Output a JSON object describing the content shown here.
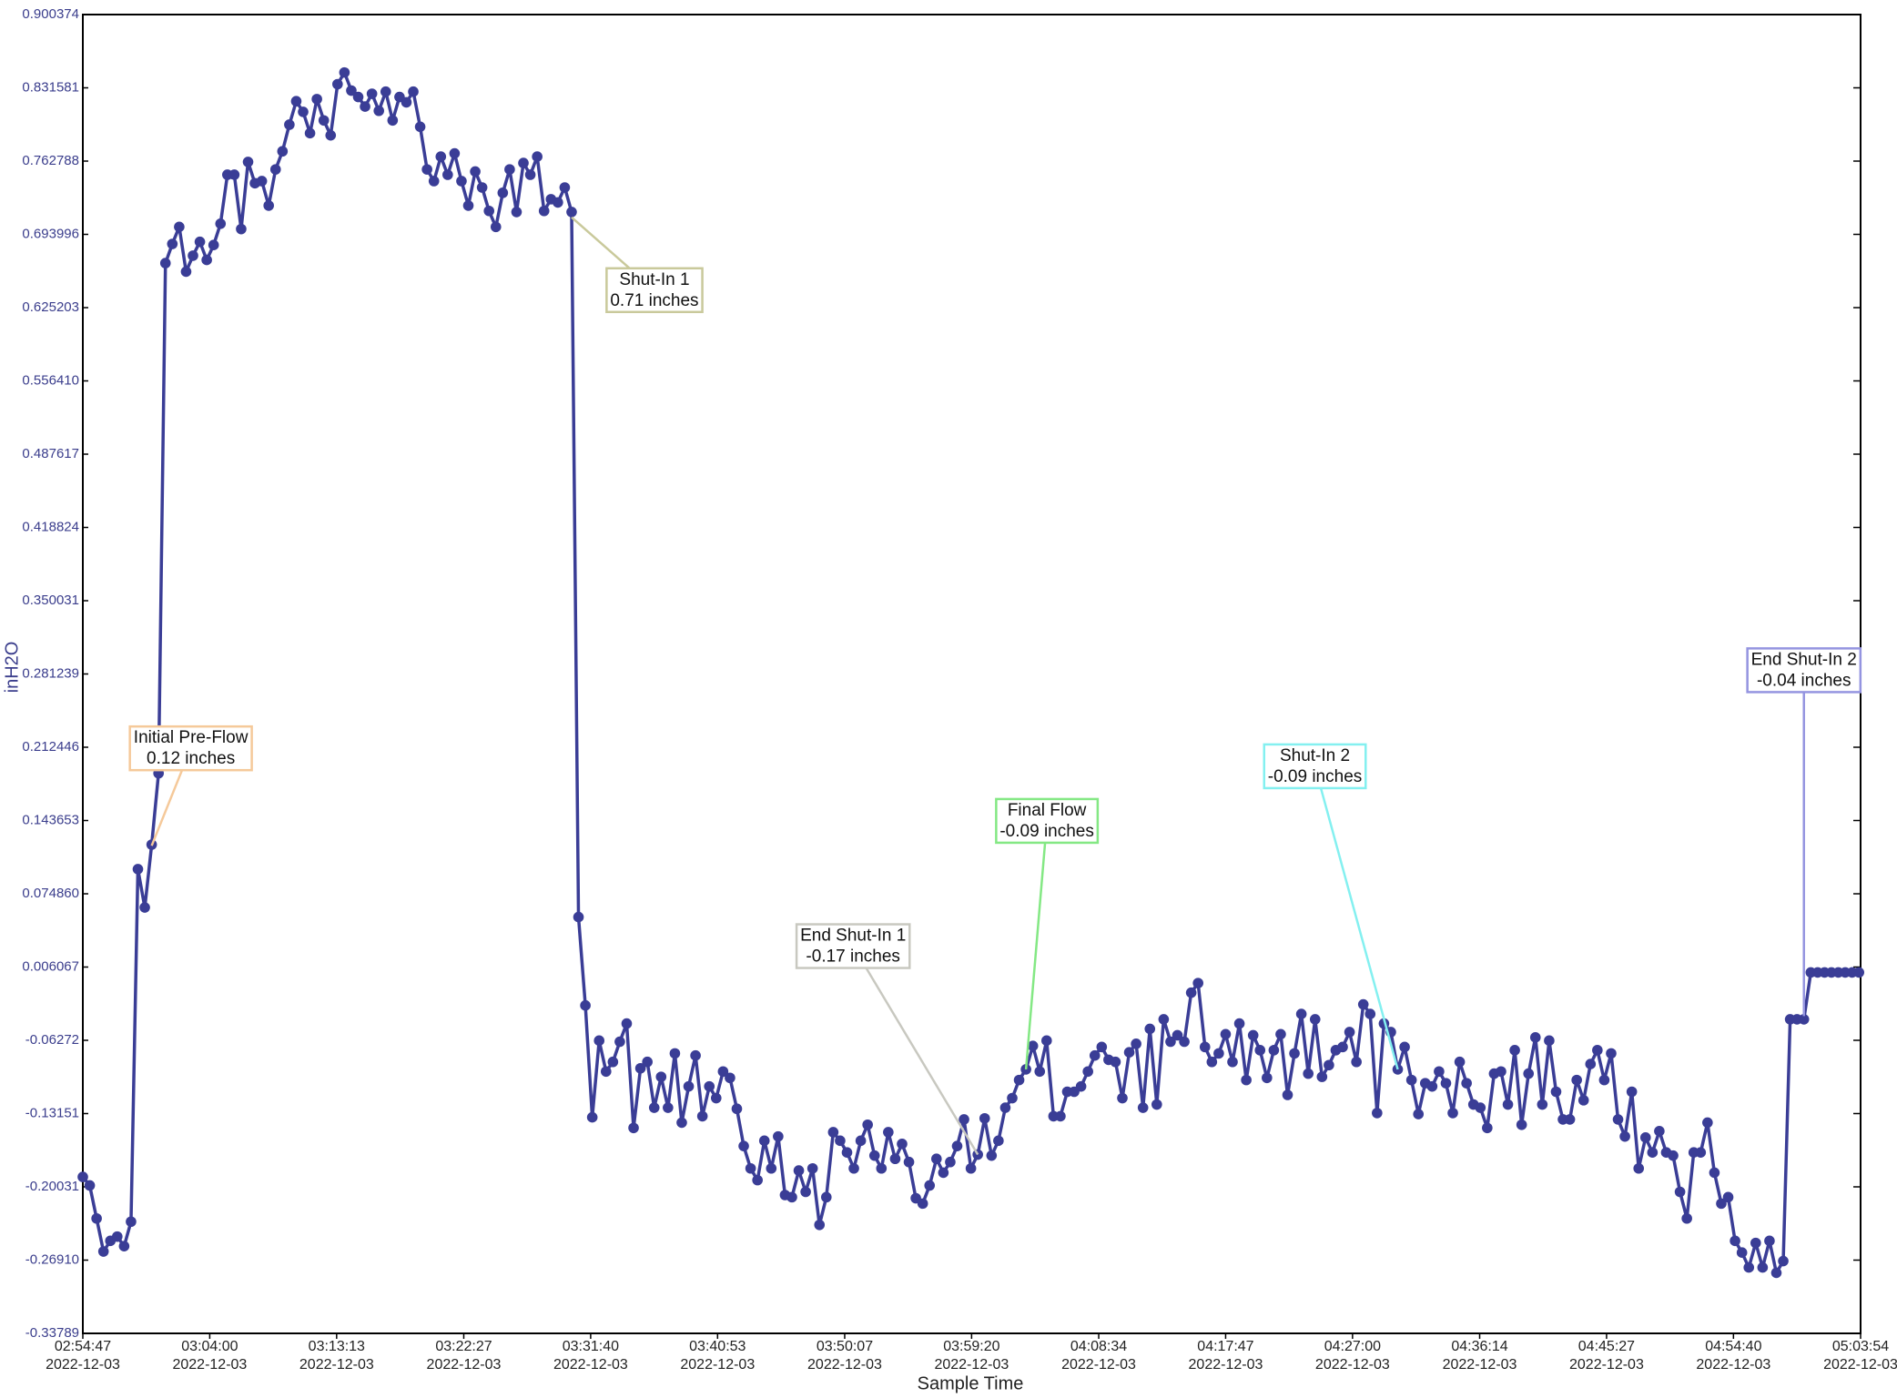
{
  "chart_data": {
    "type": "line",
    "x_label": "Sample Time",
    "y_label": "inH2O",
    "color": "#3a3d96",
    "xlim": [
      "2022-12-03 02:54:47",
      "2022-12-03 05:03:54"
    ],
    "ylim": [
      -0.33789,
      0.900374
    ],
    "yticks": [
      0.900374,
      0.831581,
      0.762788,
      0.693996,
      0.625203,
      {
        "value": 0.55641,
        "label": "0.556410"
      },
      0.487617,
      0.418824,
      0.350031,
      0.281239,
      0.212446,
      0.143653,
      {
        "value": 0.07486,
        "label": "0.074860"
      },
      0.006067,
      -0.06272,
      -0.13151,
      -0.20031,
      {
        "value": -0.2691,
        "label": "-0.26910"
      },
      -0.33789
    ],
    "xticks": [
      {
        "value": "2022-12-03 02:54:47",
        "label": [
          "02:54:47",
          "2022-12-03"
        ]
      },
      {
        "value": "2022-12-03 03:04:00",
        "label": [
          "03:04:00",
          "2022-12-03"
        ]
      },
      {
        "value": "2022-12-03 03:13:13",
        "label": [
          "03:13:13",
          "2022-12-03"
        ]
      },
      {
        "value": "2022-12-03 03:22:27",
        "label": [
          "03:22:27",
          "2022-12-03"
        ]
      },
      {
        "value": "2022-12-03 03:31:40",
        "label": [
          "03:31:40",
          "2022-12-03"
        ]
      },
      {
        "value": "2022-12-03 03:40:53",
        "label": [
          "03:40:53",
          "2022-12-03"
        ]
      },
      {
        "value": "2022-12-03 03:50:07",
        "label": [
          "03:50:07",
          "2022-12-03"
        ]
      },
      {
        "value": "2022-12-03 03:59:20",
        "label": [
          "03:59:20",
          "2022-12-03"
        ]
      },
      {
        "value": "2022-12-03 04:08:34",
        "label": [
          "04:08:34",
          "2022-12-03"
        ]
      },
      {
        "value": "2022-12-03 04:17:47",
        "label": [
          "04:17:47",
          "2022-12-03"
        ]
      },
      {
        "value": "2022-12-03 04:27:00",
        "label": [
          "04:27:00",
          "2022-12-03"
        ]
      },
      {
        "value": "2022-12-03 04:36:14",
        "label": [
          "04:36:14",
          "2022-12-03"
        ]
      },
      {
        "value": "2022-12-03 04:45:27",
        "label": [
          "04:45:27",
          "2022-12-03"
        ]
      },
      {
        "value": "2022-12-03 04:54:40",
        "label": [
          "04:54:40",
          "2022-12-03"
        ]
      },
      {
        "value": "2022-12-03 05:03:54",
        "label": [
          "05:03:54",
          "2022-12-03"
        ]
      }
    ],
    "annotations": [
      {
        "title": "Initial Pre-Flow",
        "label": "0.12 inches",
        "x": "2022-12-03 02:59:47",
        "y": 0.12,
        "color": "#f5c99a"
      },
      {
        "title": "Shut-In 1",
        "label": "0.71 inches",
        "x": "2022-12-03 03:30:17",
        "y": 0.71,
        "color": "#c9c99b"
      },
      {
        "title": "End Shut-In 1",
        "label": "-0.17 inches",
        "x": "2022-12-03 03:59:47",
        "y": -0.17,
        "color": "#c8c8c0"
      },
      {
        "title": "Final Flow",
        "label": "-0.09 inches",
        "x": "2022-12-03 04:03:17",
        "y": -0.09,
        "color": "#84e884"
      },
      {
        "title": "Shut-In 2",
        "label": "-0.09 inches",
        "x": "2022-12-03 04:30:17",
        "y": -0.09,
        "color": "#84f0f0"
      },
      {
        "title": "End Shut-In 2",
        "label": "-0.04 inches",
        "x": "2022-12-03 04:59:47",
        "y": -0.04,
        "color": "#9494e0"
      }
    ],
    "x": [
      "2022-12-03 02:54:47",
      "2022-12-03 02:55:17",
      "2022-12-03 02:55:47",
      "2022-12-03 02:56:17",
      "2022-12-03 02:56:47",
      "2022-12-03 02:57:17",
      "2022-12-03 02:57:47",
      "2022-12-03 02:58:17",
      "2022-12-03 02:58:47",
      "2022-12-03 02:59:17",
      "2022-12-03 02:59:47",
      "2022-12-03 03:00:17",
      "2022-12-03 03:00:47",
      "2022-12-03 03:01:17",
      "2022-12-03 03:01:47",
      "2022-12-03 03:02:17",
      "2022-12-03 03:02:47",
      "2022-12-03 03:03:17",
      "2022-12-03 03:03:47",
      "2022-12-03 03:04:17",
      "2022-12-03 03:04:47",
      "2022-12-03 03:05:17",
      "2022-12-03 03:05:47",
      "2022-12-03 03:06:17",
      "2022-12-03 03:06:47",
      "2022-12-03 03:07:17",
      "2022-12-03 03:07:47",
      "2022-12-03 03:08:17",
      "2022-12-03 03:08:47",
      "2022-12-03 03:09:17",
      "2022-12-03 03:09:47",
      "2022-12-03 03:10:17",
      "2022-12-03 03:10:47",
      "2022-12-03 03:11:17",
      "2022-12-03 03:11:47",
      "2022-12-03 03:12:17",
      "2022-12-03 03:12:47",
      "2022-12-03 03:13:17",
      "2022-12-03 03:13:47",
      "2022-12-03 03:14:17",
      "2022-12-03 03:14:47",
      "2022-12-03 03:15:17",
      "2022-12-03 03:15:47",
      "2022-12-03 03:16:17",
      "2022-12-03 03:16:47",
      "2022-12-03 03:17:17",
      "2022-12-03 03:17:47",
      "2022-12-03 03:18:17",
      "2022-12-03 03:18:47",
      "2022-12-03 03:19:17",
      "2022-12-03 03:19:47",
      "2022-12-03 03:20:17",
      "2022-12-03 03:20:47",
      "2022-12-03 03:21:17",
      "2022-12-03 03:21:47",
      "2022-12-03 03:22:17",
      "2022-12-03 03:22:47",
      "2022-12-03 03:23:17",
      "2022-12-03 03:23:47",
      "2022-12-03 03:24:17",
      "2022-12-03 03:24:47",
      "2022-12-03 03:25:17",
      "2022-12-03 03:25:47",
      "2022-12-03 03:26:17",
      "2022-12-03 03:26:47",
      "2022-12-03 03:27:17",
      "2022-12-03 03:27:47",
      "2022-12-03 03:28:17",
      "2022-12-03 03:28:47",
      "2022-12-03 03:29:17",
      "2022-12-03 03:29:47",
      "2022-12-03 03:30:17",
      "2022-12-03 03:30:47",
      "2022-12-03 03:31:17",
      "2022-12-03 03:31:47",
      "2022-12-03 03:32:17",
      "2022-12-03 03:32:47",
      "2022-12-03 03:33:17",
      "2022-12-03 03:33:47",
      "2022-12-03 03:34:17",
      "2022-12-03 03:34:47",
      "2022-12-03 03:35:17",
      "2022-12-03 03:35:47",
      "2022-12-03 03:36:17",
      "2022-12-03 03:36:47",
      "2022-12-03 03:37:17",
      "2022-12-03 03:37:47",
      "2022-12-03 03:38:17",
      "2022-12-03 03:38:47",
      "2022-12-03 03:39:17",
      "2022-12-03 03:39:47",
      "2022-12-03 03:40:17",
      "2022-12-03 03:40:47",
      "2022-12-03 03:41:17",
      "2022-12-03 03:41:47",
      "2022-12-03 03:42:17",
      "2022-12-03 03:42:47",
      "2022-12-03 03:43:17",
      "2022-12-03 03:43:47",
      "2022-12-03 03:44:17",
      "2022-12-03 03:44:47",
      "2022-12-03 03:45:17",
      "2022-12-03 03:45:47",
      "2022-12-03 03:46:17",
      "2022-12-03 03:46:47",
      "2022-12-03 03:47:17",
      "2022-12-03 03:47:47",
      "2022-12-03 03:48:17",
      "2022-12-03 03:48:47",
      "2022-12-03 03:49:17",
      "2022-12-03 03:49:47",
      "2022-12-03 03:50:17",
      "2022-12-03 03:50:47",
      "2022-12-03 03:51:17",
      "2022-12-03 03:51:47",
      "2022-12-03 03:52:17",
      "2022-12-03 03:52:47",
      "2022-12-03 03:53:17",
      "2022-12-03 03:53:47",
      "2022-12-03 03:54:17",
      "2022-12-03 03:54:47",
      "2022-12-03 03:55:17",
      "2022-12-03 03:55:47",
      "2022-12-03 03:56:17",
      "2022-12-03 03:56:47",
      "2022-12-03 03:57:17",
      "2022-12-03 03:57:47",
      "2022-12-03 03:58:17",
      "2022-12-03 03:58:47",
      "2022-12-03 03:59:17",
      "2022-12-03 03:59:47",
      "2022-12-03 04:00:17",
      "2022-12-03 04:00:47",
      "2022-12-03 04:01:17",
      "2022-12-03 04:01:47",
      "2022-12-03 04:02:17",
      "2022-12-03 04:02:47",
      "2022-12-03 04:03:17",
      "2022-12-03 04:03:47",
      "2022-12-03 04:04:17",
      "2022-12-03 04:04:47",
      "2022-12-03 04:05:17",
      "2022-12-03 04:05:47",
      "2022-12-03 04:06:17",
      "2022-12-03 04:06:47",
      "2022-12-03 04:07:17",
      "2022-12-03 04:07:47",
      "2022-12-03 04:08:17",
      "2022-12-03 04:08:47",
      "2022-12-03 04:09:17",
      "2022-12-03 04:09:47",
      "2022-12-03 04:10:17",
      "2022-12-03 04:10:47",
      "2022-12-03 04:11:17",
      "2022-12-03 04:11:47",
      "2022-12-03 04:12:17",
      "2022-12-03 04:12:47",
      "2022-12-03 04:13:17",
      "2022-12-03 04:13:47",
      "2022-12-03 04:14:17",
      "2022-12-03 04:14:47",
      "2022-12-03 04:15:17",
      "2022-12-03 04:15:47",
      "2022-12-03 04:16:17",
      "2022-12-03 04:16:47",
      "2022-12-03 04:17:17",
      "2022-12-03 04:17:47",
      "2022-12-03 04:18:17",
      "2022-12-03 04:18:47",
      "2022-12-03 04:19:17",
      "2022-12-03 04:19:47",
      "2022-12-03 04:20:17",
      "2022-12-03 04:20:47",
      "2022-12-03 04:21:17",
      "2022-12-03 04:21:47",
      "2022-12-03 04:22:17",
      "2022-12-03 04:22:47",
      "2022-12-03 04:23:17",
      "2022-12-03 04:23:47",
      "2022-12-03 04:24:17",
      "2022-12-03 04:24:47",
      "2022-12-03 04:25:17",
      "2022-12-03 04:25:47",
      "2022-12-03 04:26:17",
      "2022-12-03 04:26:47",
      "2022-12-03 04:27:17",
      "2022-12-03 04:27:47",
      "2022-12-03 04:28:17",
      "2022-12-03 04:28:47",
      "2022-12-03 04:29:17",
      "2022-12-03 04:29:47",
      "2022-12-03 04:30:17",
      "2022-12-03 04:30:47",
      "2022-12-03 04:31:17",
      "2022-12-03 04:31:47",
      "2022-12-03 04:32:17",
      "2022-12-03 04:32:47",
      "2022-12-03 04:33:17",
      "2022-12-03 04:33:47",
      "2022-12-03 04:34:17",
      "2022-12-03 04:34:47",
      "2022-12-03 04:35:17",
      "2022-12-03 04:35:47",
      "2022-12-03 04:36:17",
      "2022-12-03 04:36:47",
      "2022-12-03 04:37:17",
      "2022-12-03 04:37:47",
      "2022-12-03 04:38:17",
      "2022-12-03 04:38:47",
      "2022-12-03 04:39:17",
      "2022-12-03 04:39:47",
      "2022-12-03 04:40:17",
      "2022-12-03 04:40:47",
      "2022-12-03 04:41:17",
      "2022-12-03 04:41:47",
      "2022-12-03 04:42:17",
      "2022-12-03 04:42:47",
      "2022-12-03 04:43:17",
      "2022-12-03 04:43:47",
      "2022-12-03 04:44:17",
      "2022-12-03 04:44:47",
      "2022-12-03 04:45:17",
      "2022-12-03 04:45:47",
      "2022-12-03 04:46:17",
      "2022-12-03 04:46:47",
      "2022-12-03 04:47:17",
      "2022-12-03 04:47:47",
      "2022-12-03 04:48:17",
      "2022-12-03 04:48:47",
      "2022-12-03 04:49:17",
      "2022-12-03 04:49:47",
      "2022-12-03 04:50:17",
      "2022-12-03 04:50:47",
      "2022-12-03 04:51:17",
      "2022-12-03 04:51:47",
      "2022-12-03 04:52:17",
      "2022-12-03 04:52:47",
      "2022-12-03 04:53:17",
      "2022-12-03 04:53:47",
      "2022-12-03 04:54:17",
      "2022-12-03 04:54:47",
      "2022-12-03 04:55:17",
      "2022-12-03 04:55:47",
      "2022-12-03 04:56:17",
      "2022-12-03 04:56:47",
      "2022-12-03 04:57:17",
      "2022-12-03 04:57:47",
      "2022-12-03 04:58:17",
      "2022-12-03 04:58:47",
      "2022-12-03 04:59:17",
      "2022-12-03 04:59:47",
      "2022-12-03 05:00:17",
      "2022-12-03 05:00:47",
      "2022-12-03 05:01:17",
      "2022-12-03 05:01:47",
      "2022-12-03 05:02:17",
      "2022-12-03 05:02:47",
      "2022-12-03 05:03:17",
      "2022-12-03 05:03:47"
    ],
    "values": [
      -0.191,
      -0.199,
      -0.23,
      -0.261,
      -0.251,
      -0.247,
      -0.256,
      -0.233,
      0.098,
      0.062,
      0.121,
      0.188,
      0.667,
      0.685,
      0.701,
      0.659,
      0.674,
      0.687,
      0.67,
      0.684,
      0.704,
      0.75,
      0.75,
      0.699,
      0.762,
      0.742,
      0.744,
      0.721,
      0.755,
      0.772,
      0.797,
      0.819,
      0.809,
      0.789,
      0.821,
      0.801,
      0.787,
      0.835,
      0.846,
      0.829,
      0.823,
      0.814,
      0.826,
      0.81,
      0.828,
      0.801,
      0.823,
      0.818,
      0.828,
      0.795,
      0.755,
      0.744,
      0.767,
      0.75,
      0.77,
      0.744,
      0.721,
      0.753,
      0.738,
      0.716,
      0.701,
      0.733,
      0.755,
      0.715,
      0.761,
      0.75,
      0.767,
      0.716,
      0.727,
      0.724,
      0.738,
      0.715,
      0.053,
      -0.03,
      -0.135,
      -0.063,
      -0.092,
      -0.083,
      -0.064,
      -0.047,
      -0.145,
      -0.089,
      -0.083,
      -0.126,
      -0.097,
      -0.126,
      -0.075,
      -0.14,
      -0.106,
      -0.077,
      -0.134,
      -0.106,
      -0.117,
      -0.092,
      -0.098,
      -0.127,
      -0.162,
      -0.183,
      -0.194,
      -0.157,
      -0.183,
      -0.153,
      -0.208,
      -0.21,
      -0.185,
      -0.205,
      -0.183,
      -0.236,
      -0.21,
      -0.149,
      -0.157,
      -0.168,
      -0.183,
      -0.157,
      -0.142,
      -0.171,
      -0.183,
      -0.149,
      -0.174,
      -0.16,
      -0.177,
      -0.211,
      -0.216,
      -0.199,
      -0.174,
      -0.187,
      -0.177,
      -0.162,
      -0.137,
      -0.183,
      -0.17,
      -0.136,
      -0.171,
      -0.157,
      -0.126,
      -0.117,
      -0.1,
      -0.09,
      -0.068,
      -0.092,
      -0.063,
      -0.134,
      -0.134,
      -0.111,
      -0.111,
      -0.106,
      -0.092,
      -0.077,
      -0.069,
      -0.081,
      -0.083,
      -0.117,
      -0.074,
      -0.066,
      -0.126,
      -0.052,
      -0.123,
      -0.043,
      -0.064,
      -0.058,
      -0.064,
      -0.018,
      -0.009,
      -0.069,
      -0.083,
      -0.075,
      -0.057,
      -0.083,
      -0.047,
      -0.1,
      -0.058,
      -0.072,
      -0.098,
      -0.072,
      -0.057,
      -0.114,
      -0.075,
      -0.038,
      -0.094,
      -0.043,
      -0.097,
      -0.086,
      -0.072,
      -0.069,
      -0.055,
      -0.083,
      -0.029,
      -0.038,
      -0.131,
      -0.047,
      -0.055,
      -0.09,
      -0.069,
      -0.1,
      -0.132,
      -0.103,
      -0.106,
      -0.092,
      -0.103,
      -0.131,
      -0.083,
      -0.103,
      -0.123,
      -0.126,
      -0.145,
      -0.094,
      -0.092,
      -0.123,
      -0.072,
      -0.142,
      -0.094,
      -0.06,
      -0.123,
      -0.063,
      -0.111,
      -0.137,
      -0.137,
      -0.1,
      -0.119,
      -0.085,
      -0.072,
      -0.1,
      -0.075,
      -0.137,
      -0.153,
      -0.111,
      -0.183,
      -0.154,
      -0.168,
      -0.148,
      -0.168,
      -0.171,
      -0.205,
      -0.23,
      -0.168,
      -0.168,
      -0.14,
      -0.187,
      -0.216,
      -0.21,
      -0.251,
      -0.262,
      -0.276,
      -0.253,
      -0.276,
      -0.251,
      -0.281,
      -0.27,
      -0.043,
      -0.043,
      -0.043,
      0.001,
      0.001,
      0.001,
      0.001,
      0.001,
      0.001,
      0.001,
      0.001
    ]
  }
}
